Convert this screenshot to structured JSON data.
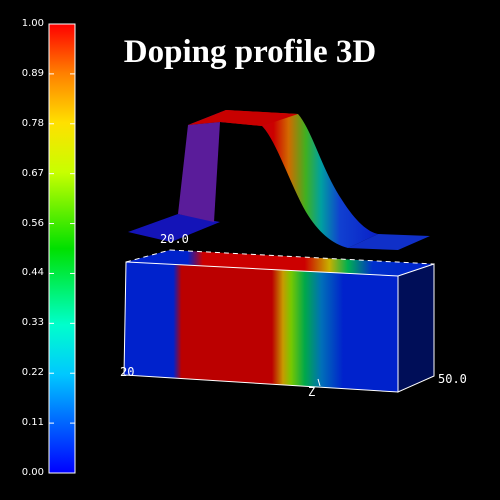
{
  "chart_data": {
    "type": "heatmap",
    "title": "Doping profile 3D",
    "colorbar": {
      "ticks": [
        "1.00",
        "0.89",
        "0.78",
        "0.67",
        "0.56",
        "0.44",
        "0.33",
        "0.22",
        "0.11",
        "0.00"
      ],
      "range": [
        0,
        1
      ],
      "colormap": "rainbow (blue → cyan → green → yellow → red)"
    },
    "axis_labels": {
      "top_face_ticklabel": "20.0",
      "left_ticklabel": "20",
      "right_ticklabel": "50.0",
      "z_label": "Z"
    },
    "profile": {
      "z": [
        0.0,
        0.1,
        0.11,
        0.15,
        0.3,
        0.5,
        0.6,
        0.7,
        0.8,
        0.9,
        1.0
      ],
      "value": [
        0.0,
        0.02,
        0.85,
        1.0,
        1.0,
        0.97,
        0.6,
        0.25,
        0.05,
        0.01,
        0.0
      ]
    }
  },
  "colors": {
    "background": "#000000",
    "frame": "#ffffff",
    "text": "#ffffff"
  }
}
